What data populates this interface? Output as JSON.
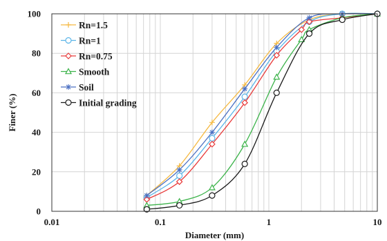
{
  "chart_data": {
    "type": "line",
    "xlabel": "Diameter (mm)",
    "ylabel": "Finer (%)",
    "xscale": "log",
    "xlim": [
      0.01,
      10
    ],
    "ylim": [
      0,
      100
    ],
    "xticks": [
      "0.01",
      "0.1",
      "1",
      "10"
    ],
    "yticks": [
      "0",
      "20",
      "40",
      "60",
      "80",
      "100"
    ],
    "grid": true,
    "legend_position": "top-left",
    "series": [
      {
        "name": "Rn=1.5",
        "color": "#f5b942",
        "marker": "plus",
        "x": [
          0.075,
          0.15,
          0.3,
          0.6,
          1.18,
          2.36,
          4.75,
          10
        ],
        "y": [
          8,
          23,
          45,
          64,
          85,
          97,
          100,
          100
        ]
      },
      {
        "name": "Rn=1",
        "color": "#5ab4e8",
        "marker": "circle",
        "x": [
          0.075,
          0.15,
          0.3,
          0.6,
          1.18,
          2.36,
          4.75,
          10
        ],
        "y": [
          7,
          18,
          37,
          58,
          81,
          96,
          100,
          100
        ]
      },
      {
        "name": "Rn=0.75",
        "color": "#e83a3a",
        "marker": "diamond",
        "x": [
          0.075,
          0.15,
          0.3,
          0.6,
          1.18,
          2.0,
          2.36,
          4.75,
          10
        ],
        "y": [
          6,
          15,
          34,
          55,
          79,
          92,
          96,
          98,
          100
        ]
      },
      {
        "name": "Smooth",
        "color": "#3cb34a",
        "marker": "triangle",
        "x": [
          0.075,
          0.15,
          0.3,
          0.6,
          1.18,
          2.0,
          2.36,
          4.75,
          10
        ],
        "y": [
          3,
          5,
          12,
          34,
          68,
          87,
          92,
          98,
          100
        ]
      },
      {
        "name": "Soil",
        "color": "#4a6fc2",
        "marker": "asterisk",
        "x": [
          0.075,
          0.15,
          0.3,
          0.6,
          1.18,
          2.36,
          4.75,
          10
        ],
        "y": [
          8,
          21,
          40,
          62,
          83,
          98,
          100,
          100
        ]
      },
      {
        "name": "Initial grading",
        "color": "#1a1a1a",
        "marker": "circle",
        "x": [
          0.075,
          0.15,
          0.3,
          0.6,
          1.18,
          2.36,
          4.75,
          10
        ],
        "y": [
          1,
          3,
          8,
          24,
          60,
          90,
          97,
          100
        ]
      }
    ]
  }
}
